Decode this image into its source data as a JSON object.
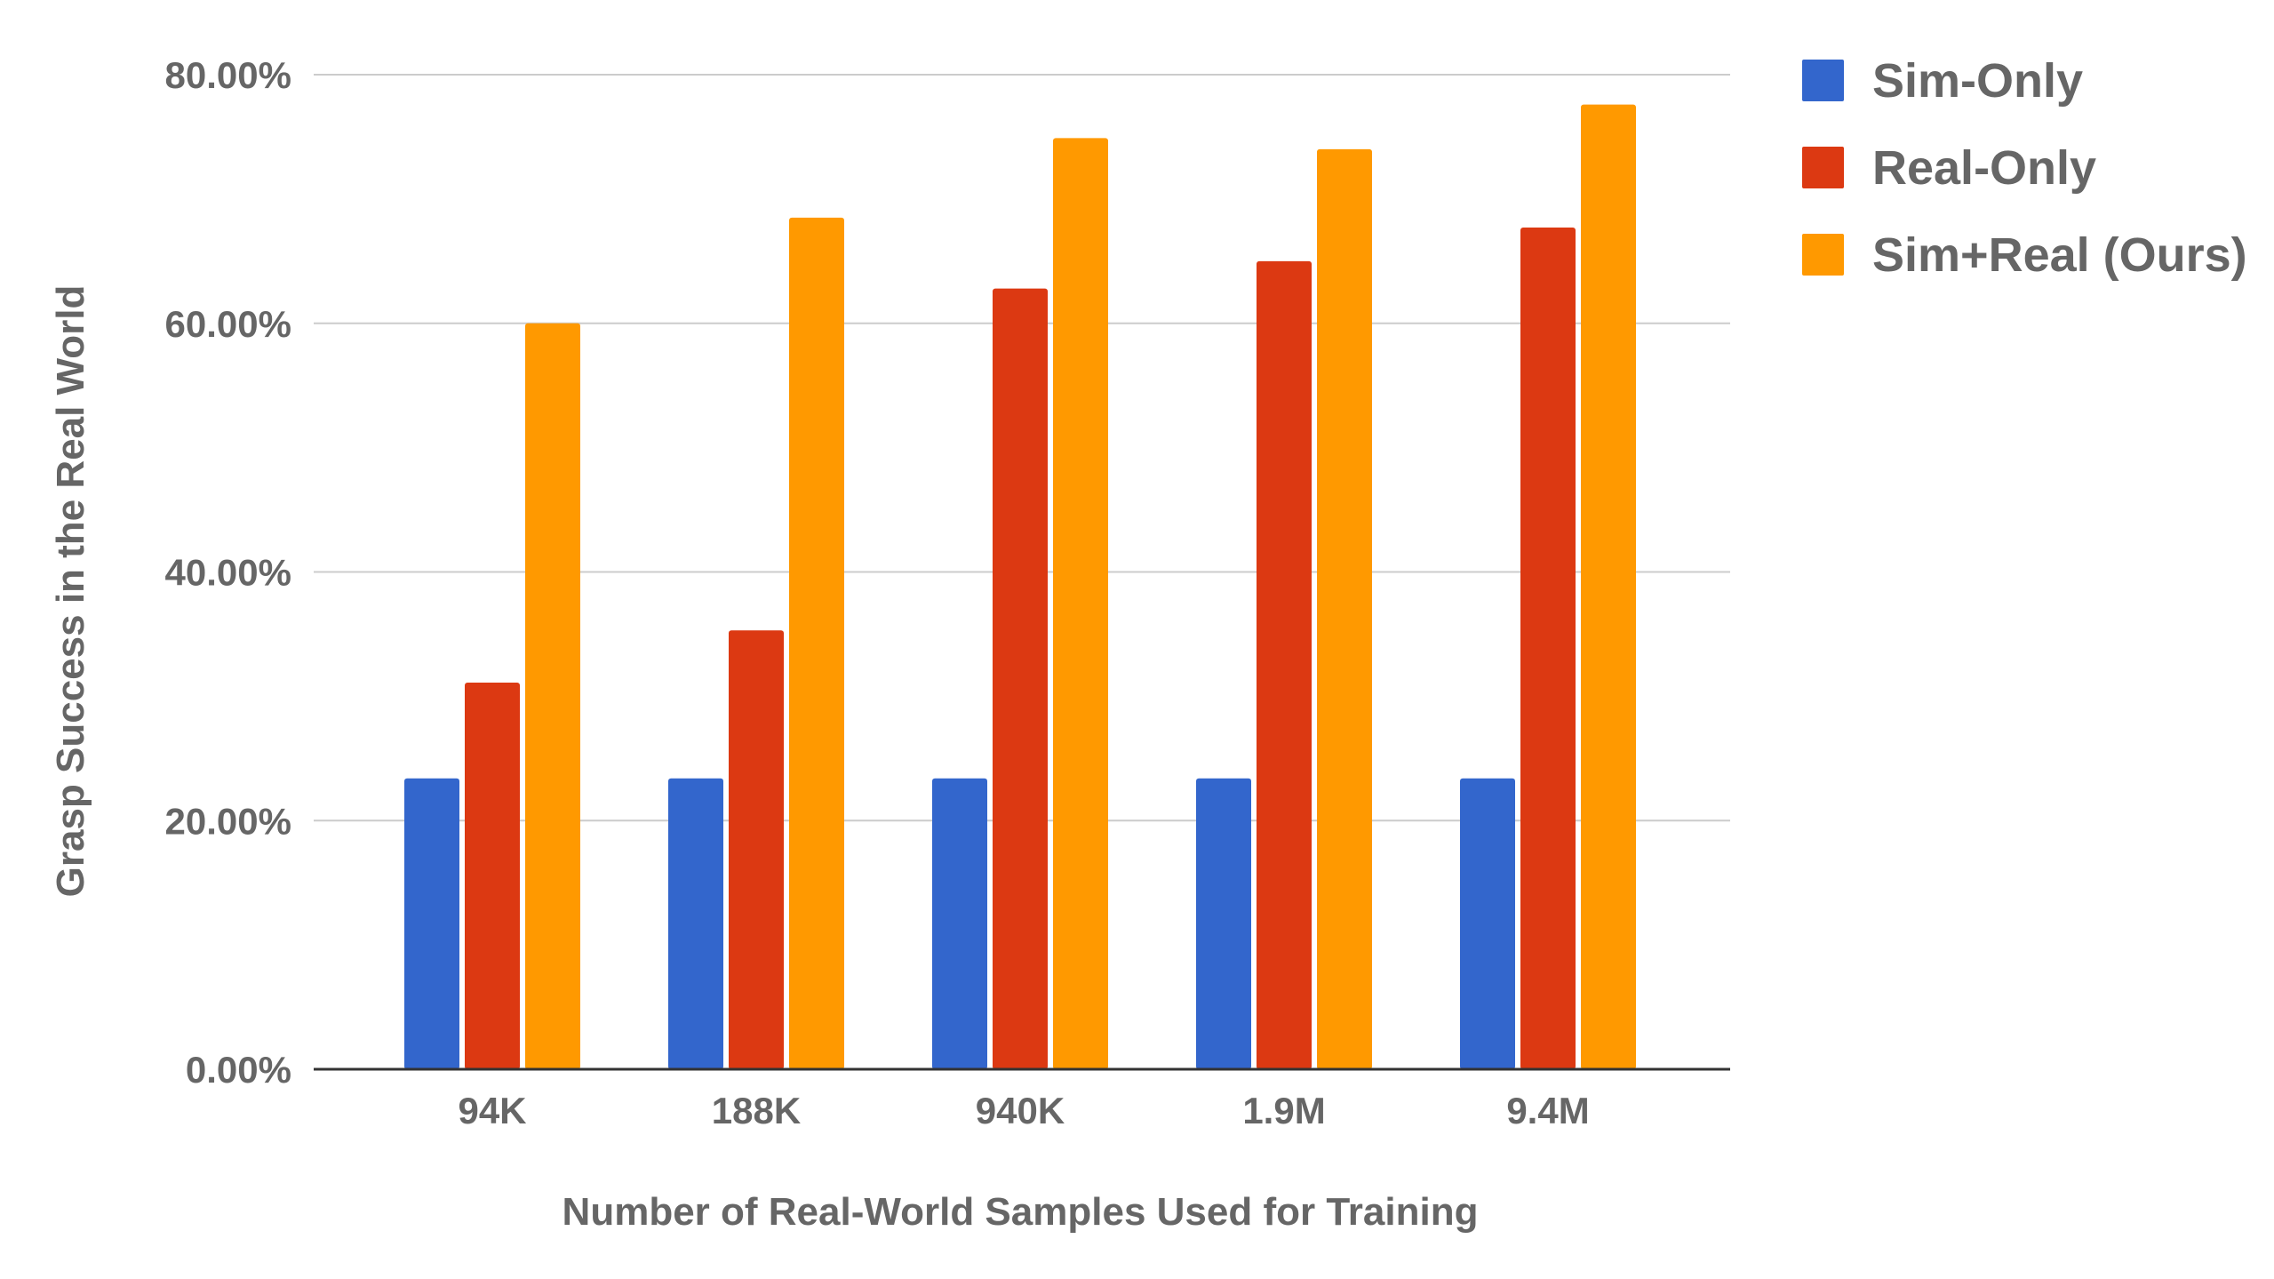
{
  "chart_data": {
    "type": "bar",
    "title": "",
    "xlabel": "Number of Real-World Samples Used for Training",
    "ylabel": "Grasp Success in the Real World",
    "categories": [
      "94K",
      "188K",
      "940K",
      "1.9M",
      "9.4M"
    ],
    "series": [
      {
        "name": "Sim-Only",
        "color": "#3366cc",
        "values": [
          23.4,
          23.4,
          23.4,
          23.4,
          23.4
        ]
      },
      {
        "name": "Real-Only",
        "color": "#dc3912",
        "values": [
          31.1,
          35.3,
          62.8,
          65.0,
          67.7
        ]
      },
      {
        "name": "Sim+Real (Ours)",
        "color": "#ff9900",
        "values": [
          60.0,
          68.5,
          74.9,
          74.0,
          77.6
        ]
      }
    ],
    "ylim": [
      0,
      80
    ],
    "yticks": [
      0,
      20,
      40,
      60,
      80
    ],
    "ytick_labels": [
      "0.00%",
      "20.00%",
      "40.00%",
      "60.00%",
      "80.00%"
    ],
    "unit": "%",
    "grid": true,
    "legend": "top-right"
  }
}
